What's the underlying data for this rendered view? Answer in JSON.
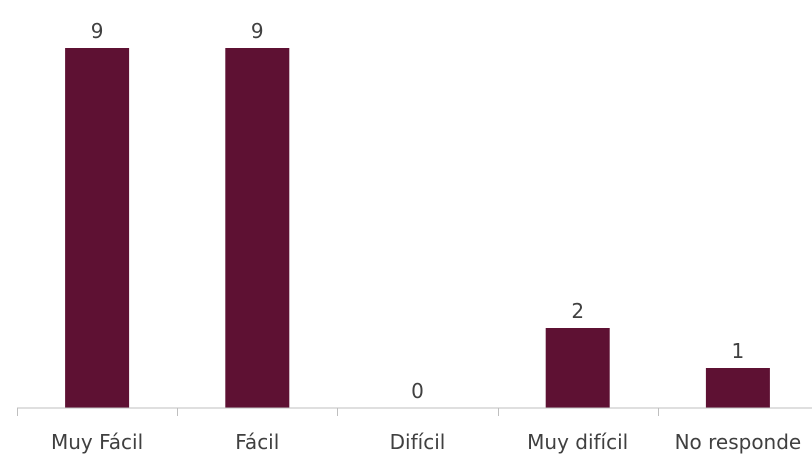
{
  "chart_data": {
    "type": "bar",
    "categories": [
      "Muy Fácil",
      "Fácil",
      "Difícil",
      "Muy difícil",
      "No responde"
    ],
    "values": [
      9,
      9,
      0,
      2,
      1
    ],
    "data_labels": [
      "9",
      "9",
      "0",
      "2",
      "1"
    ],
    "title": "",
    "xlabel": "",
    "ylabel": "",
    "ylim": [
      0,
      9
    ],
    "grid": false,
    "legend": "none",
    "colors": {
      "bar": "#5e1133",
      "axis": "#bfbfbf",
      "text": "#404040"
    }
  }
}
